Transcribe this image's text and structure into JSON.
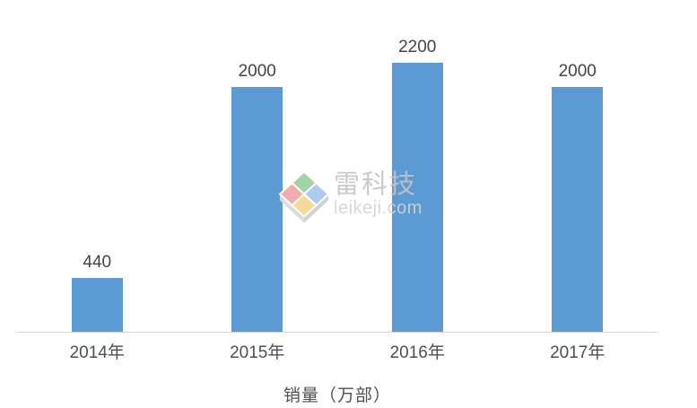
{
  "chart_data": {
    "type": "bar",
    "categories": [
      "2014年",
      "2015年",
      "2016年",
      "2017年"
    ],
    "values": [
      440,
      2000,
      2200,
      2000
    ],
    "data_labels": [
      "440",
      "2000",
      "2200",
      "2000"
    ],
    "title": "",
    "xlabel": "销量（万部）",
    "ylabel": "",
    "ylim": [
      0,
      2200
    ],
    "grid": false,
    "legend": "none",
    "bar_color": "#5b9ad2",
    "axis_line_color": "#d6d6d6",
    "value_label_color": "#444444",
    "tick_label_color": "#4f4f4f"
  },
  "watermark": {
    "brand": "雷科技",
    "domain": "leikeji.com",
    "logo_icon": "cube-logo",
    "logo_colors": {
      "top_face": "#9bd2a2",
      "right_face": "#a9c9ef",
      "left_face": "#f1a8a8",
      "bottom_face": "#f6d894",
      "side_left": "#dbdbdb",
      "side_right": "#cfcfcf"
    },
    "brand_text_color": "#c4c4c4",
    "domain_text_color": "#d3d3d3"
  }
}
